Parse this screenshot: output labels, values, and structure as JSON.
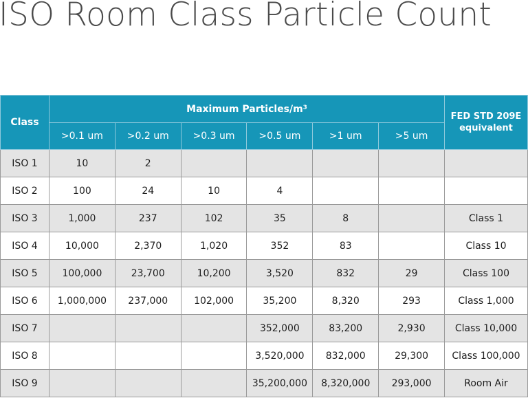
{
  "title": "ISO Room Class Particle Count",
  "table": {
    "class_header": "Class",
    "max_header": "Maximum  Particles/m³",
    "fed_header_line1": "FED STD 209E",
    "fed_header_line2": "equivalent",
    "sizes": [
      ">0.1 um",
      ">0.2 um",
      ">0.3 um",
      ">0.5 um",
      ">1 um",
      ">5 um"
    ],
    "rows": [
      {
        "cls": "ISO 1",
        "v": [
          "10",
          "2",
          "",
          "",
          "",
          ""
        ],
        "fed": ""
      },
      {
        "cls": "ISO 2",
        "v": [
          "100",
          "24",
          "10",
          "4",
          "",
          ""
        ],
        "fed": ""
      },
      {
        "cls": "ISO 3",
        "v": [
          "1,000",
          "237",
          "102",
          "35",
          "8",
          ""
        ],
        "fed": "Class 1"
      },
      {
        "cls": "ISO 4",
        "v": [
          "10,000",
          "2,370",
          "1,020",
          "352",
          "83",
          ""
        ],
        "fed": "Class 10"
      },
      {
        "cls": "ISO 5",
        "v": [
          "100,000",
          "23,700",
          "10,200",
          "3,520",
          "832",
          "29"
        ],
        "fed": "Class 100"
      },
      {
        "cls": "ISO 6",
        "v": [
          "1,000,000",
          "237,000",
          "102,000",
          "35,200",
          "8,320",
          "293"
        ],
        "fed": "Class 1,000"
      },
      {
        "cls": "ISO 7",
        "v": [
          "",
          "",
          "",
          "352,000",
          "83,200",
          "2,930"
        ],
        "fed": "Class 10,000"
      },
      {
        "cls": "ISO 8",
        "v": [
          "",
          "",
          "",
          "3,520,000",
          "832,000",
          "29,300"
        ],
        "fed": "Class 100,000"
      },
      {
        "cls": "ISO 9",
        "v": [
          "",
          "",
          "",
          "35,200,000",
          "8,320,000",
          "293,000"
        ],
        "fed": "Room Air"
      }
    ]
  }
}
